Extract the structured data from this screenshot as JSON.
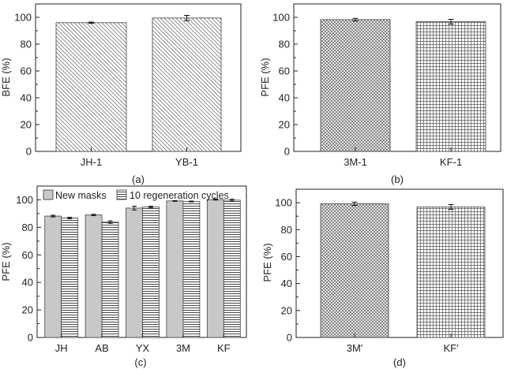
{
  "chart_data": [
    {
      "id": "a",
      "type": "bar",
      "caption": "(a)",
      "ylabel": "BFE (%)",
      "categories": [
        "JH-1",
        "YB-1"
      ],
      "values": [
        96.0,
        99.5
      ],
      "errors": [
        0.5,
        2.0
      ],
      "ylim": [
        0,
        110
      ],
      "yticks": [
        0,
        20,
        40,
        60,
        80,
        100
      ],
      "patterns": [
        "diag-back",
        "diag-back"
      ]
    },
    {
      "id": "b",
      "type": "bar",
      "caption": "(b)",
      "ylabel": "PFE (%)",
      "categories": [
        "3M-1",
        "KF-1"
      ],
      "values": [
        98.3,
        96.7
      ],
      "errors": [
        1.0,
        1.8
      ],
      "ylim": [
        0,
        110
      ],
      "yticks": [
        0,
        20,
        40,
        60,
        80,
        100
      ],
      "patterns": [
        "crosshatch-dense",
        "grid"
      ]
    },
    {
      "id": "c",
      "type": "bar",
      "caption": "(c)",
      "ylabel": "PFE (%)",
      "categories": [
        "JH",
        "AB",
        "YX",
        "3M",
        "KF"
      ],
      "series": [
        {
          "name": "New masks",
          "values": [
            88.2,
            89.0,
            94.0,
            99.2,
            100.2
          ],
          "errors": [
            0.6,
            0.5,
            1.4,
            0.3,
            0.4
          ],
          "pattern": "solid-gray"
        },
        {
          "name": "10 regeneration cycles",
          "values": [
            86.8,
            83.8,
            94.8,
            98.8,
            99.8
          ],
          "errors": [
            0.6,
            0.9,
            0.6,
            0.3,
            0.7
          ],
          "pattern": "hlines"
        }
      ],
      "ylim": [
        0,
        110
      ],
      "yticks": [
        0,
        20,
        40,
        60,
        80,
        100
      ],
      "legend": "top"
    },
    {
      "id": "d",
      "type": "bar",
      "caption": "(d)",
      "ylabel": "PFE (%)",
      "categories": [
        "3M′",
        "KF′"
      ],
      "values": [
        99.2,
        96.8
      ],
      "errors": [
        1.2,
        1.8
      ],
      "ylim": [
        0,
        110
      ],
      "yticks": [
        0,
        20,
        40,
        60,
        80,
        100
      ],
      "patterns": [
        "crosshatch-dense",
        "grid"
      ]
    }
  ]
}
